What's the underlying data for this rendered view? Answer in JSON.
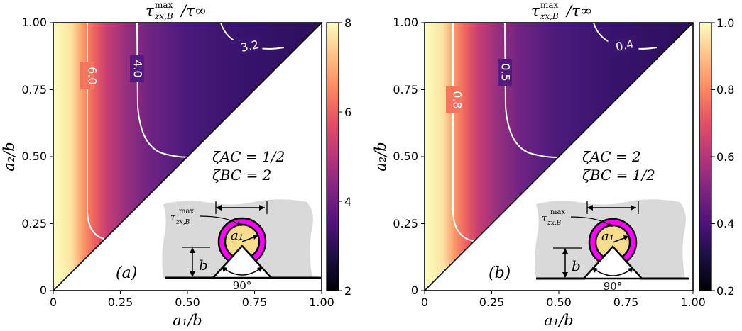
{
  "figure": {
    "xlabel": "a₁/b",
    "ylabel": "a₂/b",
    "title_main": "τ",
    "title_sup": "max",
    "title_sub": "zx,B",
    "title_rest": "/τ∞",
    "inset_label_sup": "max",
    "inset_label_main": "τ",
    "inset_label_sub": "zx,B",
    "inset_radius_label": "a₁",
    "inset_height_label": "b",
    "inset_angle_label": "90°"
  },
  "chart_data": [
    {
      "type": "heatmap",
      "panel_label": "(a)",
      "x_ticks": [
        "0",
        "0.25",
        "0.50",
        "0.75",
        "1.00"
      ],
      "y_ticks": [
        "0",
        "0.25",
        "0.50",
        "0.75",
        "1.00"
      ],
      "xlim": [
        0,
        1
      ],
      "ylim": [
        0,
        1
      ],
      "domain": "a2/b >= a1/b",
      "colorbar": {
        "ticks": [
          "2",
          "4",
          "6",
          "8"
        ],
        "range": [
          2,
          8
        ]
      },
      "contours": [
        {
          "label": "6.0",
          "value": 6.0
        },
        {
          "label": "4.0",
          "value": 4.0
        },
        {
          "label": "3.2",
          "value": 3.2
        }
      ],
      "annotations": [
        "ζAC = 1/2",
        "ζBC = 2"
      ]
    },
    {
      "type": "heatmap",
      "panel_label": "(b)",
      "x_ticks": [
        "0",
        "0.25",
        "0.50",
        "0.75",
        "1.00"
      ],
      "y_ticks": [
        "0",
        "0.25",
        "0.50",
        "0.75",
        "1.00"
      ],
      "xlim": [
        0,
        1
      ],
      "ylim": [
        0,
        1
      ],
      "domain": "a2/b >= a1/b",
      "colorbar": {
        "ticks": [
          "0.2",
          "0.4",
          "0.6",
          "0.8",
          "1.0"
        ],
        "range": [
          0.2,
          1.0
        ]
      },
      "contours": [
        {
          "label": "0.8",
          "value": 0.8
        },
        {
          "label": "0.5",
          "value": 0.5
        },
        {
          "label": "0.4",
          "value": 0.4
        }
      ],
      "annotations": [
        "ζAC = 2",
        "ζBC = 1/2"
      ]
    }
  ],
  "colors": {
    "colormap": "magma",
    "inset_layer": "#ff00ff",
    "inset_inclusion": "#f9dc8c",
    "inset_matrix": "#d9d9d9"
  }
}
